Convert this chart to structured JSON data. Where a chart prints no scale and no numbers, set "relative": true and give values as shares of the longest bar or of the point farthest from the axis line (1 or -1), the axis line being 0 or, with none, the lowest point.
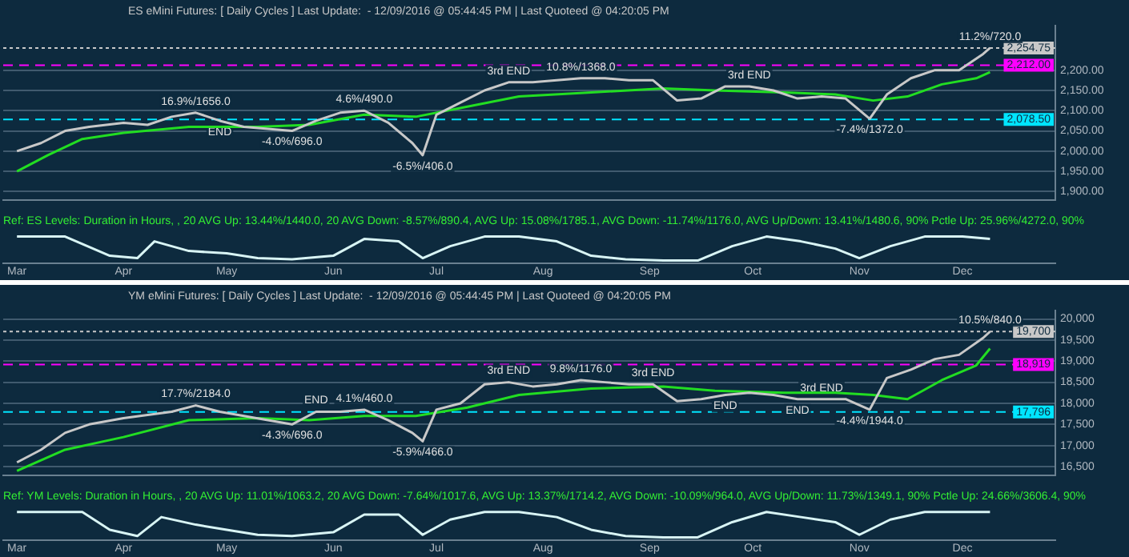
{
  "chart_data": [
    {
      "type": "line",
      "title": "ES eMini Futures: [ Daily Cycles ] Last Update:  - 12/09/2016 @ 05:44:45 PM | Last Quoteed @ 04:20:05 PM",
      "xlim": [
        "2016-02-26",
        "2016-12-28"
      ],
      "ylim": [
        1880,
        2310
      ],
      "yticks": [
        {
          "value": 1900,
          "label": "1,900.00"
        },
        {
          "value": 1950,
          "label": "1,950.00"
        },
        {
          "value": 2000,
          "label": "2,000.00"
        },
        {
          "value": 2050,
          "label": "2,050.00"
        },
        {
          "value": 2100,
          "label": "2,100.00"
        },
        {
          "value": 2150,
          "label": "2,150.00"
        },
        {
          "value": 2200,
          "label": "2,200.00"
        }
      ],
      "tick_labels": "y",
      "grid": "y",
      "legend": false,
      "marker": "none",
      "series": [
        {
          "color": "#c8c8c8",
          "x": [
            "2016-03-01",
            "2016-03-08",
            "2016-03-15",
            "2016-03-22",
            "2016-04-01",
            "2016-04-08",
            "2016-04-15",
            "2016-04-22",
            "2016-04-29",
            "2016-05-06",
            "2016-05-13",
            "2016-05-20",
            "2016-05-27",
            "2016-06-03",
            "2016-06-10",
            "2016-06-17",
            "2016-06-24",
            "2016-06-27",
            "2016-07-01",
            "2016-07-08",
            "2016-07-15",
            "2016-07-22",
            "2016-07-29",
            "2016-08-05",
            "2016-08-12",
            "2016-08-19",
            "2016-08-26",
            "2016-09-02",
            "2016-09-09",
            "2016-09-16",
            "2016-09-23",
            "2016-09-30",
            "2016-10-07",
            "2016-10-14",
            "2016-10-21",
            "2016-10-28",
            "2016-11-04",
            "2016-11-09",
            "2016-11-16",
            "2016-11-23",
            "2016-11-30",
            "2016-12-07",
            "2016-12-09"
          ],
          "values": [
            2000,
            2020,
            2050,
            2060,
            2070,
            2065,
            2085,
            2095,
            2075,
            2060,
            2055,
            2050,
            2075,
            2095,
            2100,
            2070,
            2020,
            1990,
            2090,
            2120,
            2150,
            2170,
            2170,
            2175,
            2180,
            2180,
            2175,
            2175,
            2125,
            2130,
            2160,
            2160,
            2150,
            2130,
            2135,
            2130,
            2080,
            2140,
            2180,
            2200,
            2200,
            2240,
            2254.75
          ]
        },
        {
          "color": "#22dd22",
          "x": [
            "2016-03-01",
            "2016-03-10",
            "2016-03-20",
            "2016-04-01",
            "2016-04-20",
            "2016-05-10",
            "2016-05-25",
            "2016-06-10",
            "2016-06-25",
            "2016-07-10",
            "2016-07-25",
            "2016-08-15",
            "2016-09-05",
            "2016-09-20",
            "2016-10-10",
            "2016-10-25",
            "2016-11-05",
            "2016-11-15",
            "2016-11-25",
            "2016-12-05",
            "2016-12-09"
          ],
          "values": [
            1950,
            1990,
            2030,
            2045,
            2060,
            2060,
            2065,
            2090,
            2085,
            2110,
            2135,
            2145,
            2155,
            2150,
            2145,
            2140,
            2125,
            2135,
            2165,
            2180,
            2195
          ]
        }
      ],
      "ref_lines": [
        {
          "axis": "y",
          "value": 2254.75,
          "label": "2,254.75",
          "color": "#c8c8c8",
          "line_style": "dotted"
        },
        {
          "axis": "y",
          "value": 2212,
          "label": "2,212.00",
          "color": "#ff00ff",
          "line_style": "dashed"
        },
        {
          "axis": "y",
          "value": 2078.5,
          "label": "2,078.50",
          "color": "#00e5ff",
          "line_style": "dashed"
        }
      ],
      "annotations": [
        {
          "text": "16.9%/1656.0",
          "x": "2016-04-22",
          "y": 2095
        },
        {
          "text": "4.6%/490.0",
          "x": "2016-06-10",
          "y": 2100
        },
        {
          "text": "10.8%/1368.0",
          "x": "2016-08-12",
          "y": 2180
        },
        {
          "text": "11.2%/720.0",
          "x": "2016-12-09",
          "y": 2254.75
        },
        {
          "text": "-4.0%/696.0",
          "x": "2016-05-20",
          "y": 2050
        },
        {
          "text": "-6.5%/406.0",
          "x": "2016-06-27",
          "y": 1990
        },
        {
          "text": "-7.4%/1372.0",
          "x": "2016-11-04",
          "y": 2080
        },
        {
          "text": "END",
          "x": "2016-04-29",
          "y": 2075
        },
        {
          "text": "3rd END",
          "x": "2016-07-22",
          "y": 2170
        },
        {
          "text": "3rd END",
          "x": "2016-09-30",
          "y": 2160
        }
      ]
    },
    {
      "type": "line",
      "relative": true,
      "xlim": [
        "2016-02-26",
        "2016-12-28"
      ],
      "xticks": [
        {
          "value": "2016-03-01",
          "label": "Mar"
        },
        {
          "value": "2016-04-01",
          "label": "Apr"
        },
        {
          "value": "2016-05-01",
          "label": "May"
        },
        {
          "value": "2016-06-01",
          "label": "Jun"
        },
        {
          "value": "2016-07-01",
          "label": "Jul"
        },
        {
          "value": "2016-08-01",
          "label": "Aug"
        },
        {
          "value": "2016-09-01",
          "label": "Sep"
        },
        {
          "value": "2016-10-01",
          "label": "Oct"
        },
        {
          "value": "2016-11-01",
          "label": "Nov"
        },
        {
          "value": "2016-12-01",
          "label": "Dec"
        }
      ],
      "tick_labels": "x",
      "legend": false,
      "marker": "none",
      "series": [
        {
          "color": "#d8f4f4",
          "x": [
            "2016-03-01",
            "2016-03-15",
            "2016-03-28",
            "2016-04-05",
            "2016-04-10",
            "2016-04-20",
            "2016-05-01",
            "2016-05-10",
            "2016-05-20",
            "2016-06-01",
            "2016-06-10",
            "2016-06-20",
            "2016-06-27",
            "2016-07-05",
            "2016-07-15",
            "2016-07-25",
            "2016-08-05",
            "2016-08-15",
            "2016-08-25",
            "2016-09-05",
            "2016-09-15",
            "2016-09-25",
            "2016-10-05",
            "2016-10-15",
            "2016-10-25",
            "2016-11-01",
            "2016-11-10",
            "2016-11-20",
            "2016-12-01",
            "2016-12-09"
          ],
          "values": [
            1,
            1,
            0.2,
            0.1,
            0.8,
            0.4,
            0.3,
            0.1,
            0.05,
            0.2,
            0.9,
            0.8,
            0.1,
            0.6,
            1,
            1,
            0.8,
            0.2,
            0.05,
            0,
            0,
            0.6,
            1,
            0.8,
            0.5,
            0.1,
            0.6,
            1,
            1,
            0.9
          ]
        }
      ],
      "annotations": [
        "Ref: ES Levels: Duration in Hours, , 20 AVG Up: 13.44%/1440.0, 20 AVG Down: -8.57%/890.4, AVG Up: 15.08%/1785.1, AVG Down: -11.74%/1176.0, AVG Up/Down: 13.41%/1480.6, 90% Pctle Up: 25.96%/4272.0, 90%"
      ]
    },
    {
      "type": "line",
      "title": "YM eMini Futures: [ Daily Cycles ] Last Update:  - 12/09/2016 @ 05:44:45 PM | Last Quoteed @ 04:20:05 PM",
      "xlim": [
        "2016-02-26",
        "2016-12-28"
      ],
      "ylim": [
        16300,
        20200
      ],
      "yticks": [
        {
          "value": 16500,
          "label": "16,500"
        },
        {
          "value": 17000,
          "label": "17,000"
        },
        {
          "value": 17500,
          "label": "17,500"
        },
        {
          "value": 18000,
          "label": "18,000"
        },
        {
          "value": 18500,
          "label": "18,500"
        },
        {
          "value": 19000,
          "label": "19,000"
        },
        {
          "value": 19500,
          "label": "19,500"
        },
        {
          "value": 20000,
          "label": "20,000"
        }
      ],
      "tick_labels": "y",
      "grid": "y",
      "legend": false,
      "marker": "none",
      "series": [
        {
          "color": "#c8c8c8",
          "x": [
            "2016-03-01",
            "2016-03-08",
            "2016-03-15",
            "2016-03-22",
            "2016-04-01",
            "2016-04-15",
            "2016-04-22",
            "2016-04-29",
            "2016-05-06",
            "2016-05-13",
            "2016-05-20",
            "2016-05-27",
            "2016-06-03",
            "2016-06-10",
            "2016-06-17",
            "2016-06-24",
            "2016-06-27",
            "2016-07-01",
            "2016-07-08",
            "2016-07-15",
            "2016-07-22",
            "2016-07-29",
            "2016-08-05",
            "2016-08-12",
            "2016-08-19",
            "2016-08-26",
            "2016-09-02",
            "2016-09-09",
            "2016-09-16",
            "2016-09-23",
            "2016-09-30",
            "2016-10-07",
            "2016-10-14",
            "2016-10-21",
            "2016-10-28",
            "2016-11-04",
            "2016-11-09",
            "2016-11-16",
            "2016-11-23",
            "2016-11-30",
            "2016-12-07",
            "2016-12-09"
          ],
          "values": [
            16600,
            16900,
            17300,
            17500,
            17650,
            17800,
            17950,
            17800,
            17700,
            17600,
            17500,
            17800,
            17800,
            17850,
            17600,
            17300,
            17100,
            17850,
            18000,
            18450,
            18500,
            18400,
            18450,
            18550,
            18500,
            18450,
            18450,
            18050,
            18100,
            18200,
            18250,
            18200,
            18100,
            18100,
            18100,
            17850,
            18600,
            18800,
            19050,
            19150,
            19550,
            19700
          ]
        },
        {
          "color": "#22dd22",
          "x": [
            "2016-03-01",
            "2016-03-15",
            "2016-04-01",
            "2016-04-20",
            "2016-05-10",
            "2016-05-25",
            "2016-06-10",
            "2016-06-25",
            "2016-07-10",
            "2016-07-25",
            "2016-08-15",
            "2016-09-05",
            "2016-09-20",
            "2016-10-10",
            "2016-10-25",
            "2016-11-05",
            "2016-11-15",
            "2016-11-25",
            "2016-12-05",
            "2016-12-09"
          ],
          "values": [
            16400,
            16900,
            17200,
            17600,
            17650,
            17600,
            17700,
            17700,
            17900,
            18200,
            18350,
            18400,
            18300,
            18250,
            18250,
            18200,
            18100,
            18550,
            18900,
            19300
          ]
        }
      ],
      "ref_lines": [
        {
          "axis": "y",
          "value": 19700,
          "label": "19,700",
          "color": "#c8c8c8",
          "line_style": "dotted"
        },
        {
          "axis": "y",
          "value": 18919,
          "label": "18,919",
          "color": "#ff00ff",
          "line_style": "dashed"
        },
        {
          "axis": "y",
          "value": 17796,
          "label": "17,796",
          "color": "#00e5ff",
          "line_style": "dashed"
        }
      ],
      "annotations": [
        {
          "text": "17.7%/2184.0",
          "x": "2016-04-22",
          "y": 17950
        },
        {
          "text": "4.1%/460.0",
          "x": "2016-06-10",
          "y": 17850
        },
        {
          "text": "9.8%/1176.0",
          "x": "2016-08-12",
          "y": 18550
        },
        {
          "text": "10.5%/840.0",
          "x": "2016-12-09",
          "y": 19700
        },
        {
          "text": "-4.3%/696.0",
          "x": "2016-05-20",
          "y": 17500
        },
        {
          "text": "-5.9%/466.0",
          "x": "2016-06-27",
          "y": 17100
        },
        {
          "text": "-4.4%/1944.0",
          "x": "2016-11-04",
          "y": 17850
        },
        {
          "text": "END",
          "x": "2016-05-27",
          "y": 17800
        },
        {
          "text": "3rd END",
          "x": "2016-07-22",
          "y": 18500
        },
        {
          "text": "3rd END",
          "x": "2016-09-02",
          "y": 18450
        },
        {
          "text": "END",
          "x": "2016-09-23",
          "y": 18200
        },
        {
          "text": "END",
          "x": "2016-10-14",
          "y": 18100
        },
        {
          "text": "3rd END",
          "x": "2016-10-21",
          "y": 18100
        }
      ]
    },
    {
      "type": "line",
      "relative": true,
      "xlim": [
        "2016-02-26",
        "2016-12-28"
      ],
      "xticks": [
        {
          "value": "2016-03-01",
          "label": "Mar"
        },
        {
          "value": "2016-04-01",
          "label": "Apr"
        },
        {
          "value": "2016-05-01",
          "label": "May"
        },
        {
          "value": "2016-06-01",
          "label": "Jun"
        },
        {
          "value": "2016-07-01",
          "label": "Jul"
        },
        {
          "value": "2016-08-01",
          "label": "Aug"
        },
        {
          "value": "2016-09-01",
          "label": "Sep"
        },
        {
          "value": "2016-10-01",
          "label": "Oct"
        },
        {
          "value": "2016-11-01",
          "label": "Nov"
        },
        {
          "value": "2016-12-01",
          "label": "Dec"
        }
      ],
      "tick_labels": "x",
      "legend": false,
      "marker": "none",
      "series": [
        {
          "color": "#d8f4f4",
          "x": [
            "2016-03-01",
            "2016-03-20",
            "2016-03-28",
            "2016-04-05",
            "2016-04-12",
            "2016-04-22",
            "2016-05-01",
            "2016-05-10",
            "2016-05-20",
            "2016-06-01",
            "2016-06-10",
            "2016-06-20",
            "2016-06-27",
            "2016-07-05",
            "2016-07-15",
            "2016-07-25",
            "2016-08-05",
            "2016-08-15",
            "2016-08-25",
            "2016-09-05",
            "2016-09-15",
            "2016-09-25",
            "2016-10-05",
            "2016-10-15",
            "2016-10-25",
            "2016-11-01",
            "2016-11-10",
            "2016-11-20",
            "2016-12-01",
            "2016-12-09"
          ],
          "values": [
            1,
            1,
            0.3,
            0.05,
            0.8,
            0.5,
            0.3,
            0.1,
            0.05,
            0.2,
            0.9,
            0.9,
            0.1,
            0.7,
            1,
            1,
            0.8,
            0.3,
            0.05,
            0,
            0,
            0.6,
            1,
            0.8,
            0.6,
            0.1,
            0.7,
            1,
            1,
            1
          ]
        }
      ],
      "annotations": [
        "Ref: YM Levels: Duration in Hours, , 20 AVG Up: 11.01%/1063.2, 20 AVG Down: -7.64%/1017.6, AVG Up: 13.37%/1714.2, AVG Down: -10.09%/964.0, AVG Up/Down: 11.73%/1349.1, 90% Pctle Up: 24.66%/3606.4, 90%"
      ]
    }
  ]
}
